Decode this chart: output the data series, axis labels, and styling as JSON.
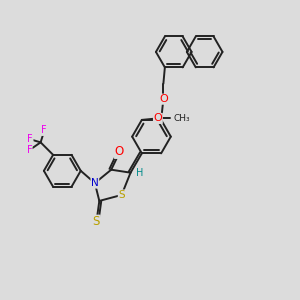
{
  "background_color": "#dcdcdc",
  "bond_color": "#222222",
  "bond_width": 1.4,
  "atom_colors": {
    "O": "#ff0000",
    "N": "#0000cd",
    "S": "#b8a000",
    "F": "#ee00ee",
    "H": "#008b8b",
    "C": "#222222"
  },
  "font_size": 7.0
}
